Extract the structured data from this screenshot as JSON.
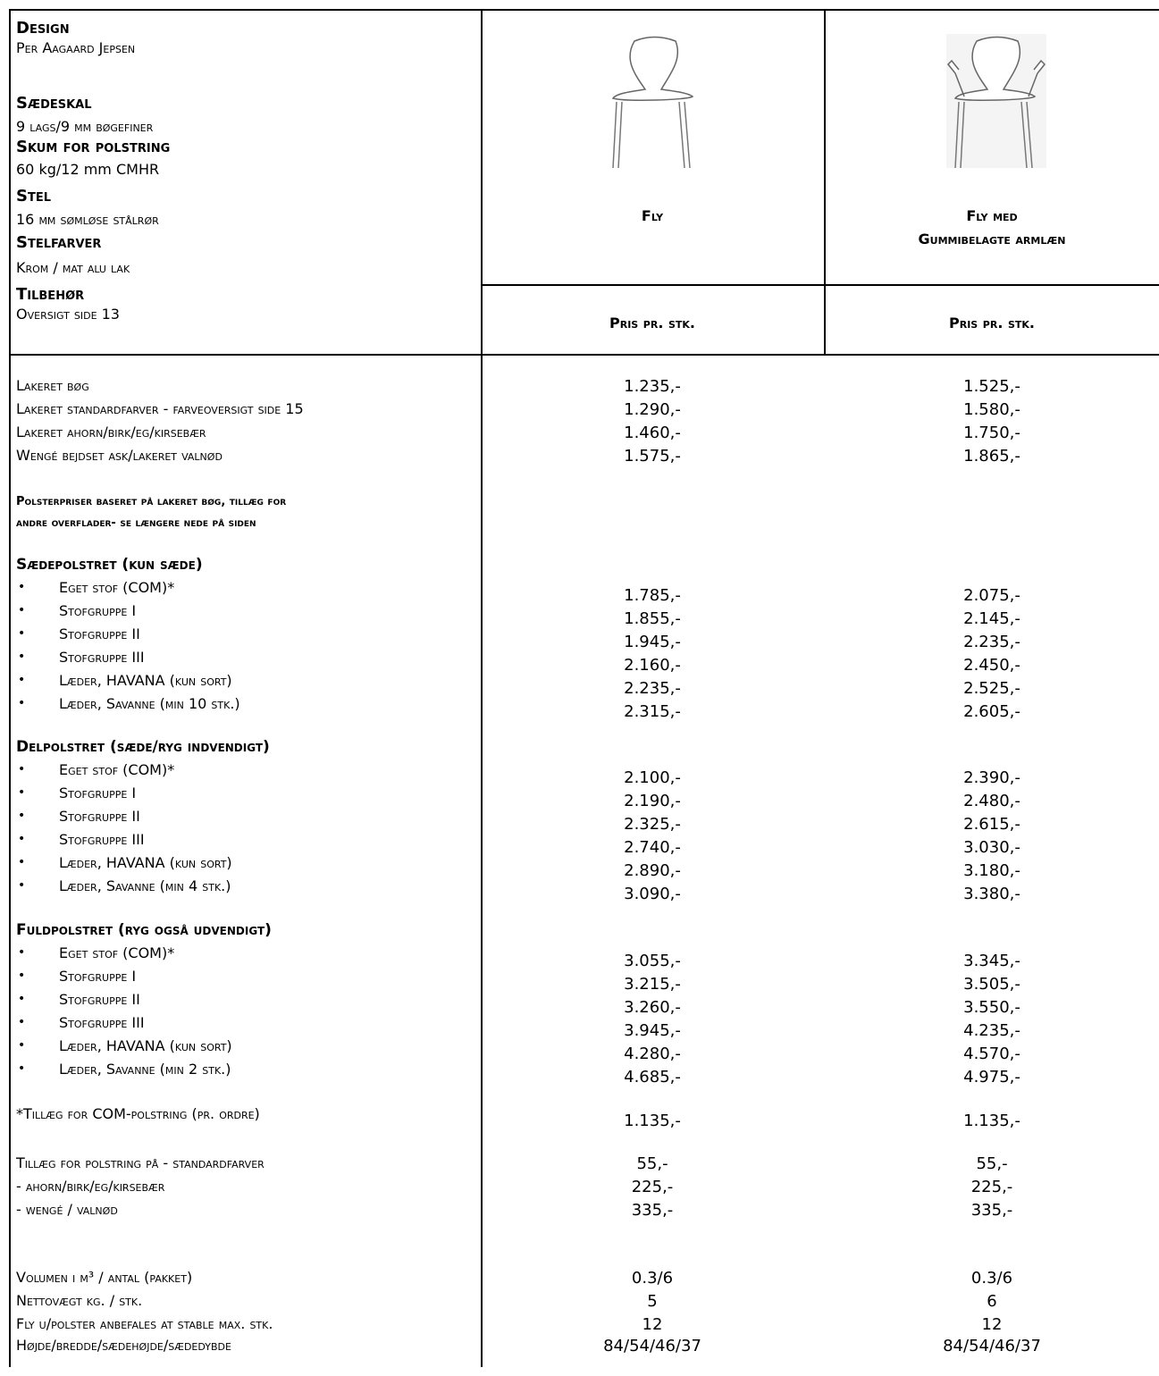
{
  "specs": [
    {
      "heading": "Design",
      "value": "Per Aagaard Jepsen"
    },
    {
      "heading": "Sædeskal",
      "value": "9 lags/9 mm bøgefiner"
    },
    {
      "heading": "Skum for polstring",
      "value": "60 kg/12 mm CMHR"
    },
    {
      "heading": "Stel",
      "value": "16 mm sømløse stålrør"
    },
    {
      "heading": "Stelfarver",
      "value": "Krom / mat alu lak"
    },
    {
      "heading": "Tilbehør",
      "value": "Oversigt side 13"
    }
  ],
  "products": [
    {
      "name": "Fly",
      "name_line2": "",
      "price_header": "Pris pr. stk."
    },
    {
      "name": "Fly med",
      "name_line2": "Gummibelagte armlæn",
      "price_header": "Pris pr. stk."
    }
  ],
  "finishes": [
    {
      "label": "Lakeret bøg",
      "fly": "1.235,-",
      "arm": "1.525,-"
    },
    {
      "label": "Lakeret standardfarver - farveoversigt side 15",
      "fly": "1.290,-",
      "arm": "1.580,-"
    },
    {
      "label": "Lakeret ahorn/birk/eg/kirsebær",
      "fly": "1.460,-",
      "arm": "1.750,-"
    },
    {
      "label": "Wengé bejdset ask/lakeret valnød",
      "fly": "1.575,-",
      "arm": "1.865,-"
    }
  ],
  "note": {
    "line1": "Polsterpriser baseret på lakeret bøg, tillæg for",
    "line2": "andre overflader- se længere nede på siden"
  },
  "groups": [
    {
      "title": "Sædepolstret (kun sæde)",
      "rows": [
        {
          "label": "Eget stof (COM)*",
          "fly": "1.785,-",
          "arm": "2.075,-"
        },
        {
          "label": "Stofgruppe I",
          "fly": "1.855,-",
          "arm": "2.145,-"
        },
        {
          "label": "Stofgruppe II",
          "fly": "1.945,-",
          "arm": "2.235,-"
        },
        {
          "label": "Stofgruppe III",
          "fly": "2.160,-",
          "arm": "2.450,-"
        },
        {
          "label": "Læder, HAVANA (kun sort)",
          "fly": "2.235,-",
          "arm": "2.525,-"
        },
        {
          "label": "Læder, Savanne (min 10 stk.)",
          "fly": "2.315,-",
          "arm": "2.605,-"
        }
      ]
    },
    {
      "title": "Delpolstret (sæde/ryg indvendigt)",
      "rows": [
        {
          "label": "Eget stof (COM)*",
          "fly": "2.100,-",
          "arm": "2.390,-"
        },
        {
          "label": "Stofgruppe I",
          "fly": "2.190,-",
          "arm": "2.480,-"
        },
        {
          "label": "Stofgruppe II",
          "fly": "2.325,-",
          "arm": "2.615,-"
        },
        {
          "label": "Stofgruppe III",
          "fly": "2.740,-",
          "arm": "3.030,-"
        },
        {
          "label": "Læder, HAVANA (kun sort)",
          "fly": "2.890,-",
          "arm": "3.180,-"
        },
        {
          "label": "Læder, Savanne (min 4 stk.)",
          "fly": "3.090,-",
          "arm": "3.380,-"
        }
      ]
    },
    {
      "title": "Fuldpolstret (ryg også udvendigt)",
      "rows": [
        {
          "label": "Eget stof (COM)*",
          "fly": "3.055,-",
          "arm": "3.345,-"
        },
        {
          "label": "Stofgruppe I",
          "fly": "3.215,-",
          "arm": "3.505,-"
        },
        {
          "label": "Stofgruppe II",
          "fly": "3.260,-",
          "arm": "3.550,-"
        },
        {
          "label": "Stofgruppe III",
          "fly": "3.945,-",
          "arm": "4.235,-"
        },
        {
          "label": "Læder, HAVANA (kun sort)",
          "fly": "4.280,-",
          "arm": "4.570,-"
        },
        {
          "label": "Læder, Savanne (min 2 stk.)",
          "fly": "4.685,-",
          "arm": "4.975,-"
        }
      ]
    }
  ],
  "com": {
    "label": "*Tillæg for COM-polstring (pr. ordre)",
    "fly": "1.135,-",
    "arm": "1.135,-"
  },
  "surcharges": [
    {
      "label": "Tillæg for polstring på - standardfarver",
      "fly": "55,-",
      "arm": "55,-"
    },
    {
      "label": "- ahorn/birk/eg/kirsebær",
      "fly": "225,-",
      "arm": "225,-"
    },
    {
      "label": "- wengé / valnød",
      "fly": "335,-",
      "arm": "335,-"
    }
  ],
  "facts": [
    {
      "label": "Volumen i m³ / antal (pakket)",
      "fly": "0.3/6",
      "arm": "0.3/6"
    },
    {
      "label": "Nettovægt kg. / stk.",
      "fly": "5",
      "arm": "6"
    },
    {
      "label": "Fly u/polster anbefales at stable max. stk.",
      "fly": "12",
      "arm": "12"
    },
    {
      "label": "Højde/bredde/sædehøjde/sædedybde",
      "fly": "84/54/46/37",
      "arm": "84/54/46/37"
    }
  ],
  "bullet_char": "•",
  "icons": {
    "chair": "chair-icon",
    "chair_arms": "chair-with-armrests-icon"
  }
}
